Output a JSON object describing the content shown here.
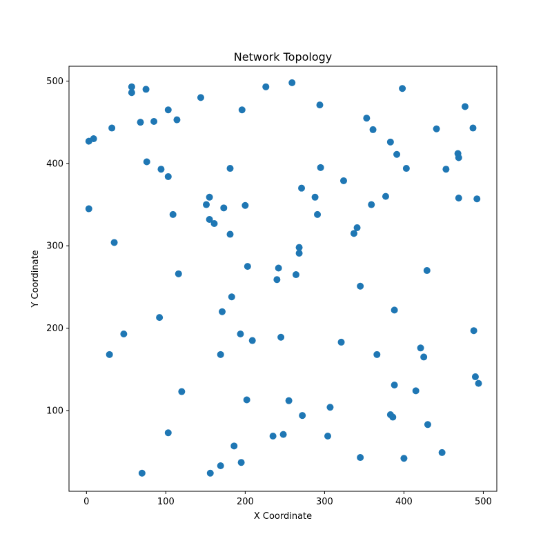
{
  "chart_data": {
    "type": "scatter",
    "title": "Network Topology",
    "xlabel": "X Coordinate",
    "ylabel": "Y Coordinate",
    "xlim": [
      -22,
      517
    ],
    "ylim": [
      2,
      518
    ],
    "xticks": [
      0,
      100,
      200,
      300,
      400,
      500
    ],
    "yticks": [
      100,
      200,
      300,
      400,
      500
    ],
    "grid": false,
    "marker_color": "#1f77b4",
    "series": [
      {
        "points": [
          [
            57,
            493
          ],
          [
            57,
            486
          ],
          [
            75,
            490
          ],
          [
            144,
            480
          ],
          [
            226,
            493
          ],
          [
            259,
            498
          ],
          [
            398,
            491
          ],
          [
            196,
            465
          ],
          [
            294,
            471
          ],
          [
            103,
            465
          ],
          [
            114,
            453
          ],
          [
            68,
            450
          ],
          [
            85,
            451
          ],
          [
            477,
            469
          ],
          [
            32,
            443
          ],
          [
            353,
            455
          ],
          [
            361,
            441
          ],
          [
            441,
            442
          ],
          [
            487,
            443
          ],
          [
            3,
            427
          ],
          [
            9,
            430
          ],
          [
            383,
            426
          ],
          [
            391,
            411
          ],
          [
            468,
            412
          ],
          [
            469,
            407
          ],
          [
            76,
            402
          ],
          [
            94,
            393
          ],
          [
            103,
            384
          ],
          [
            181,
            394
          ],
          [
            295,
            395
          ],
          [
            403,
            394
          ],
          [
            453,
            393
          ],
          [
            324,
            379
          ],
          [
            271,
            370
          ],
          [
            377,
            360
          ],
          [
            155,
            359
          ],
          [
            288,
            359
          ],
          [
            469,
            358
          ],
          [
            492,
            357
          ],
          [
            151,
            350
          ],
          [
            173,
            346
          ],
          [
            200,
            349
          ],
          [
            359,
            350
          ],
          [
            3,
            345
          ],
          [
            109,
            338
          ],
          [
            291,
            338
          ],
          [
            155,
            332
          ],
          [
            161,
            327
          ],
          [
            341,
            322
          ],
          [
            337,
            315
          ],
          [
            181,
            314
          ],
          [
            35,
            304
          ],
          [
            268,
            298
          ],
          [
            268,
            291
          ],
          [
            203,
            275
          ],
          [
            242,
            273
          ],
          [
            429,
            270
          ],
          [
            116,
            266
          ],
          [
            264,
            265
          ],
          [
            240,
            259
          ],
          [
            345,
            251
          ],
          [
            183,
            238
          ],
          [
            388,
            222
          ],
          [
            171,
            220
          ],
          [
            92,
            213
          ],
          [
            488,
            197
          ],
          [
            47,
            193
          ],
          [
            194,
            193
          ],
          [
            245,
            189
          ],
          [
            209,
            185
          ],
          [
            321,
            183
          ],
          [
            421,
            176
          ],
          [
            29,
            168
          ],
          [
            169,
            168
          ],
          [
            366,
            168
          ],
          [
            425,
            165
          ],
          [
            490,
            141
          ],
          [
            494,
            133
          ],
          [
            388,
            131
          ],
          [
            120,
            123
          ],
          [
            415,
            124
          ],
          [
            202,
            113
          ],
          [
            255,
            112
          ],
          [
            307,
            104
          ],
          [
            272,
            94
          ],
          [
            383,
            95
          ],
          [
            386,
            92
          ],
          [
            430,
            83
          ],
          [
            103,
            73
          ],
          [
            235,
            69
          ],
          [
            248,
            71
          ],
          [
            304,
            69
          ],
          [
            186,
            57
          ],
          [
            448,
            49
          ],
          [
            345,
            43
          ],
          [
            400,
            42
          ],
          [
            195,
            37
          ],
          [
            169,
            33
          ],
          [
            70,
            24
          ],
          [
            156,
            24
          ]
        ]
      }
    ]
  }
}
